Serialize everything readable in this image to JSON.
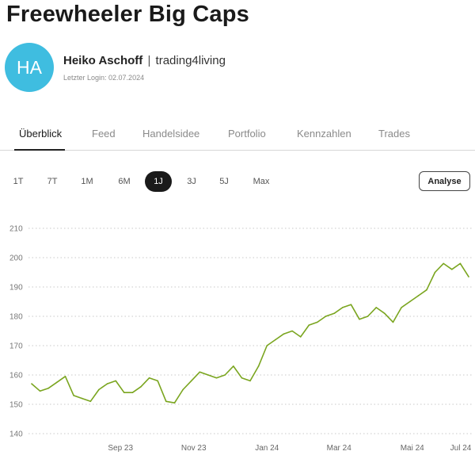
{
  "portfolio": {
    "title": "Freewheeler Big Caps"
  },
  "author": {
    "initials": "HA",
    "name": "Heiko Aschoff",
    "separator": "|",
    "handle": "trading4living",
    "last_login": "Letzter Login: 02.07.2024"
  },
  "colors": {
    "avatar": "#3fbde0",
    "line": "#7aa51f",
    "grid": "#c8c8c8"
  },
  "tabs": [
    {
      "label": "Überblick",
      "active": true
    },
    {
      "label": "Feed"
    },
    {
      "label": "Handelsidee"
    },
    {
      "label": "Portfolio"
    },
    {
      "label": "Kennzahlen"
    },
    {
      "label": "Trades"
    }
  ],
  "ranges": [
    "1T",
    "7T",
    "1M",
    "6M",
    "1J",
    "3J",
    "5J",
    "Max"
  ],
  "selected_range": "1J",
  "analyse_label": "Analyse",
  "chart_data": {
    "type": "line",
    "xlabel": "",
    "ylabel": "",
    "ylim": [
      140,
      210
    ],
    "yticks": [
      140,
      150,
      160,
      170,
      180,
      190,
      200,
      210
    ],
    "xticks": [
      "Sep 23",
      "Nov 23",
      "Jan 24",
      "Mar 24",
      "Mai 24",
      "Jul 24"
    ],
    "grid": "horizontal-dotted",
    "series": [
      {
        "x": [
          "2023-07-03",
          "2023-07-10",
          "2023-07-17",
          "2023-07-24",
          "2023-07-31",
          "2023-08-07",
          "2023-08-14",
          "2023-08-21",
          "2023-08-28",
          "2023-09-04",
          "2023-09-11",
          "2023-09-18",
          "2023-09-25",
          "2023-10-02",
          "2023-10-09",
          "2023-10-16",
          "2023-10-23",
          "2023-10-30",
          "2023-11-06",
          "2023-11-13",
          "2023-11-20",
          "2023-11-27",
          "2023-12-04",
          "2023-12-11",
          "2023-12-18",
          "2023-12-25",
          "2024-01-01",
          "2024-01-08",
          "2024-01-15",
          "2024-01-22",
          "2024-01-29",
          "2024-02-05",
          "2024-02-12",
          "2024-02-19",
          "2024-02-26",
          "2024-03-04",
          "2024-03-11",
          "2024-03-18",
          "2024-03-25",
          "2024-04-01",
          "2024-04-08",
          "2024-04-15",
          "2024-04-22",
          "2024-04-29",
          "2024-05-06",
          "2024-05-13",
          "2024-05-20",
          "2024-05-27",
          "2024-06-03",
          "2024-06-10",
          "2024-06-17",
          "2024-06-24",
          "2024-07-01"
        ],
        "y": [
          157,
          154.5,
          155.5,
          157.5,
          159.5,
          153,
          152,
          151,
          155,
          157,
          158,
          154,
          154,
          156,
          159,
          158,
          151,
          150.5,
          155,
          158,
          161,
          160,
          159,
          160,
          163,
          159,
          158,
          163,
          170,
          172,
          174,
          175,
          173,
          177,
          178,
          180,
          181,
          183,
          184,
          179,
          180,
          183,
          181,
          178,
          183,
          185,
          187,
          189,
          195,
          198,
          196,
          198,
          193.5
        ]
      }
    ]
  }
}
